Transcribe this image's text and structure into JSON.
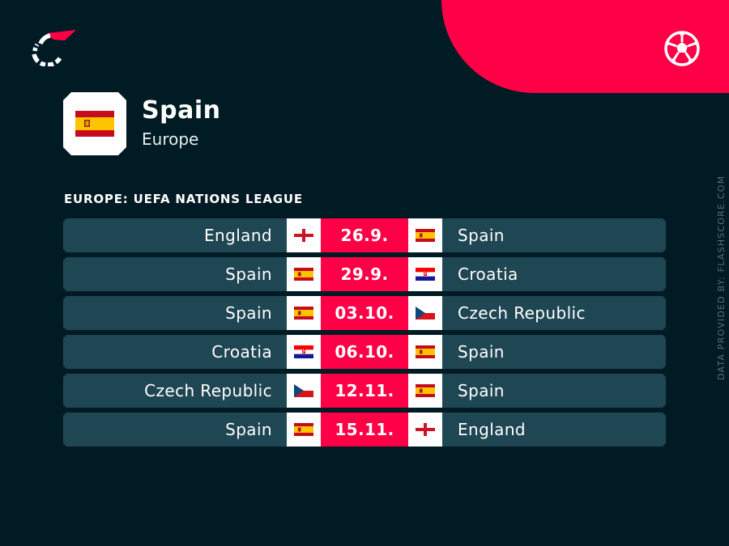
{
  "branding": {
    "logo_icon": "flashscore-logo-icon",
    "sport_icon": "football-icon",
    "accent_color": "#ff0046",
    "background_color": "#011b25",
    "row_color": "#1f4653"
  },
  "team": {
    "name": "Spain",
    "region": "Europe",
    "flag_icon": "spain-flag-icon"
  },
  "competition": "EUROPE: UEFA NATIONS LEAGUE",
  "matches": [
    {
      "home": "England",
      "home_flag": "england",
      "date": "26.9.",
      "away": "Spain",
      "away_flag": "spain"
    },
    {
      "home": "Spain",
      "home_flag": "spain",
      "date": "29.9.",
      "away": "Croatia",
      "away_flag": "croatia"
    },
    {
      "home": "Spain",
      "home_flag": "spain",
      "date": "03.10.",
      "away": "Czech Republic",
      "away_flag": "czech"
    },
    {
      "home": "Croatia",
      "home_flag": "croatia",
      "date": "06.10.",
      "away": "Spain",
      "away_flag": "spain"
    },
    {
      "home": "Czech Republic",
      "home_flag": "czech",
      "date": "12.11.",
      "away": "Spain",
      "away_flag": "spain"
    },
    {
      "home": "Spain",
      "home_flag": "spain",
      "date": "15.11.",
      "away": "England",
      "away_flag": "england"
    }
  ],
  "credit": "DATA PROVIDED BY: FLASHSCORE.COM"
}
